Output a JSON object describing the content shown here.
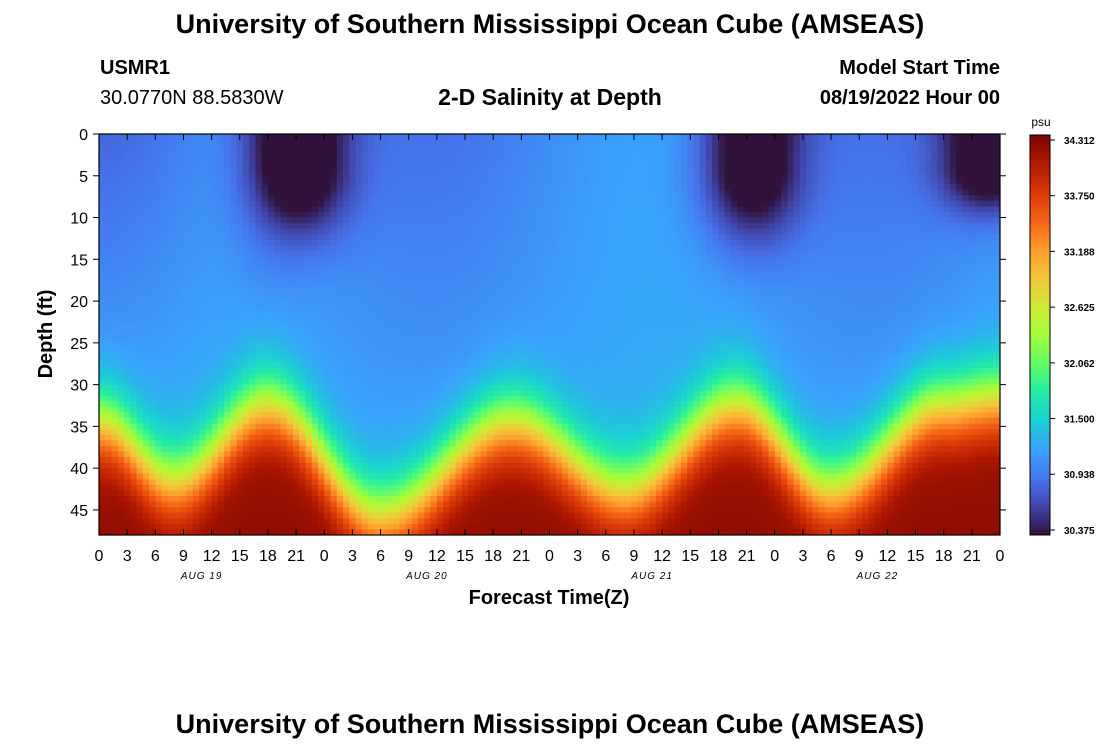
{
  "header": {
    "title": "University of Southern Mississippi Ocean Cube (AMSEAS)",
    "station_id": "USMR1",
    "coords": "30.0770N  88.5830W",
    "start_label": "Model Start Time",
    "start_value": "08/19/2022 Hour 00",
    "footer_title": "University of Southern Mississippi Ocean Cube (AMSEAS)"
  },
  "chart_data": {
    "type": "heatmap",
    "title": "2-D Salinity at Depth",
    "xlabel": "Forecast Time(Z)",
    "ylabel": "Depth (ft)",
    "x_ticks": [
      "0",
      "3",
      "6",
      "9",
      "12",
      "15",
      "18",
      "21",
      "0",
      "3",
      "6",
      "9",
      "12",
      "15",
      "18",
      "21",
      "0",
      "3",
      "6",
      "9",
      "12",
      "15",
      "18",
      "21",
      "0",
      "3",
      "6",
      "9",
      "12",
      "15",
      "18",
      "21",
      "0"
    ],
    "day_labels": [
      "AUG 19",
      "AUG 20",
      "AUG 21",
      "AUG 22"
    ],
    "y_ticks": [
      "0",
      "5",
      "10",
      "15",
      "20",
      "25",
      "30",
      "35",
      "40",
      "45"
    ],
    "y_range": [
      0,
      48
    ],
    "x_range_hours": [
      0,
      96
    ],
    "colorbar": {
      "unit": "psu",
      "ticks": [
        "34.312",
        "33.750",
        "33.188",
        "32.625",
        "32.062",
        "31.500",
        "30.938",
        "30.375"
      ],
      "min": 30.375,
      "max": 34.312,
      "colormap": [
        "#30123b",
        "#4145ab",
        "#4675ed",
        "#39a2fc",
        "#1bcfd4",
        "#24eca6",
        "#61fc6c",
        "#a4fc3b",
        "#d1e834",
        "#f3c63a",
        "#fe9b2d",
        "#f36315",
        "#d93806",
        "#b11901",
        "#7a0402"
      ]
    },
    "surface_layer_fresh_minima": [
      {
        "hour": 21.5,
        "depth_max": 15,
        "min_psu": 30.4
      },
      {
        "hour": 69.5,
        "depth_max": 16,
        "min_psu": 30.4
      },
      {
        "hour": 95,
        "depth_max": 10,
        "min_psu": 30.375
      }
    ],
    "halocline_depth_ft": [
      {
        "hour": 0,
        "depth": 34
      },
      {
        "hour": 8,
        "depth": 41
      },
      {
        "hour": 18,
        "depth": 32
      },
      {
        "hour": 30,
        "depth": 45
      },
      {
        "hour": 44,
        "depth": 34
      },
      {
        "hour": 56,
        "depth": 42
      },
      {
        "hour": 68,
        "depth": 32
      },
      {
        "hour": 78,
        "depth": 42
      },
      {
        "hour": 90,
        "depth": 32
      },
      {
        "hour": 96,
        "depth": 31
      }
    ]
  }
}
